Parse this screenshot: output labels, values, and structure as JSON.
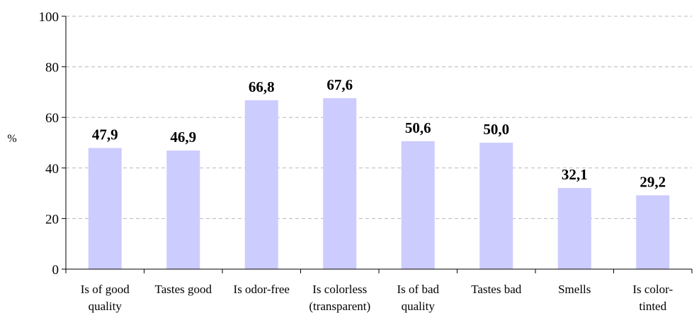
{
  "chart_data": {
    "type": "bar",
    "ylabel": "%",
    "ylim": [
      0,
      100
    ],
    "yticks": [
      0,
      20,
      40,
      60,
      80,
      100
    ],
    "grid": "horizontal dashed",
    "bar_color": "#ccccff",
    "categories": [
      [
        "Is of good",
        "quality"
      ],
      [
        "Tastes good"
      ],
      [
        "Is odor-free"
      ],
      [
        "Is colorless",
        "(transparent)"
      ],
      [
        "Is of bad",
        "quality"
      ],
      [
        "Tastes bad"
      ],
      [
        "Smells"
      ],
      [
        "Is color-",
        "tinted"
      ]
    ],
    "values": [
      47.9,
      46.9,
      66.8,
      67.6,
      50.6,
      50.0,
      32.1,
      29.2
    ],
    "data_labels": [
      "47,9",
      "46,9",
      "66,8",
      "67,6",
      "50,6",
      "50,0",
      "32,1",
      "29,2"
    ]
  }
}
